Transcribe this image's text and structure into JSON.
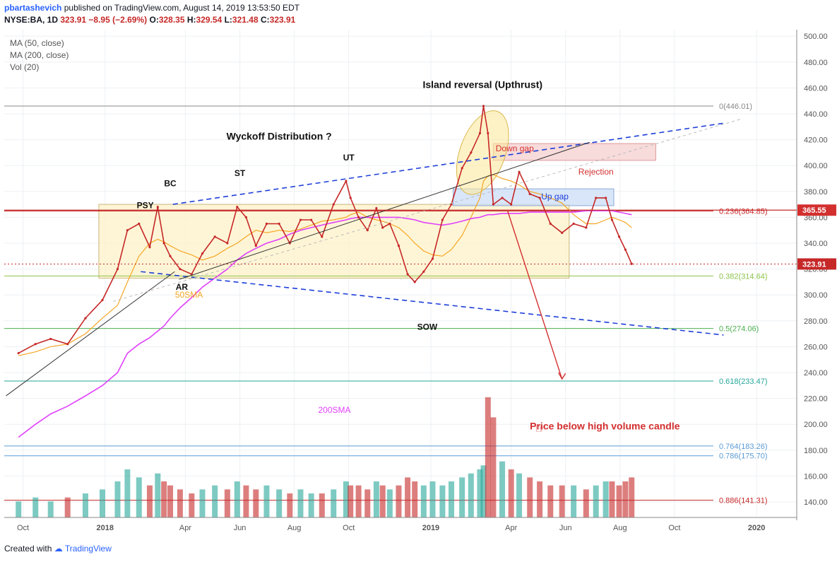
{
  "header": {
    "author": "pbartashevich",
    "published_text": "published on TradingView.com, August 14, 2019 13:53:50 EDT",
    "symbol": "NYSE:BA, 1D",
    "last": "323.91",
    "change": "−8.95 (−2.69%)",
    "o_label": "O:",
    "o": "328.35",
    "h_label": "H:",
    "h": "329.54",
    "l_label": "L:",
    "l": "321.48",
    "c_label": "C:",
    "c": "323.91"
  },
  "indicators": [
    "MA (50, close)",
    "MA (200, close)",
    "Vol (20)"
  ],
  "footer": {
    "created": "Created with",
    "brand": "TradingView"
  },
  "colors": {
    "up": "#26a69a",
    "down": "#c62828",
    "ma50": "#f5a623",
    "ma200": "#e040fb",
    "grid": "#eef0f3",
    "trend": "#1e3fd9",
    "fib": "#8bc34a"
  },
  "chart_data": {
    "type": "line",
    "symbol": "NYSE:BA",
    "interval": "1D",
    "x_ticks": [
      "Oct",
      "2018",
      "Apr",
      "Jun",
      "Aug",
      "Oct",
      "2019",
      "Apr",
      "Jun",
      "Aug",
      "Oct",
      "2020"
    ],
    "y_ticks": [
      "500.00",
      "480.00",
      "460.00",
      "440.00",
      "420.00",
      "400.00",
      "380.00",
      "360.00",
      "340.00",
      "320.00",
      "300.00",
      "280.00",
      "260.00",
      "240.00",
      "220.00",
      "200.00",
      "180.00",
      "160.00",
      "140.00"
    ],
    "ylim": [
      128,
      505
    ],
    "x": [
      "2017-09-26",
      "2017-10-15",
      "2017-11-01",
      "2017-11-20",
      "2017-12-10",
      "2017-12-29",
      "2018-01-15",
      "2018-01-26",
      "2018-02-08",
      "2018-02-20",
      "2018-03-01",
      "2018-03-08",
      "2018-03-15",
      "2018-03-26",
      "2018-04-08",
      "2018-04-20",
      "2018-05-04",
      "2018-05-18",
      "2018-05-29",
      "2018-06-08",
      "2018-06-19",
      "2018-07-01",
      "2018-07-15",
      "2018-07-27",
      "2018-08-08",
      "2018-08-20",
      "2018-09-01",
      "2018-09-14",
      "2018-09-28",
      "2018-10-03",
      "2018-10-12",
      "2018-10-22",
      "2018-11-01",
      "2018-11-08",
      "2018-11-16",
      "2018-11-26",
      "2018-12-06",
      "2018-12-14",
      "2018-12-24",
      "2019-01-03",
      "2019-01-14",
      "2019-01-24",
      "2019-02-05",
      "2019-02-15",
      "2019-02-25",
      "2019-03-01",
      "2019-03-06",
      "2019-03-12",
      "2019-03-22",
      "2019-04-01",
      "2019-04-10",
      "2019-04-22",
      "2019-05-03",
      "2019-05-15",
      "2019-05-28",
      "2019-06-10",
      "2019-06-24",
      "2019-07-05",
      "2019-07-16",
      "2019-07-23",
      "2019-07-31",
      "2019-08-07",
      "2019-08-14"
    ],
    "series": [
      {
        "name": "NYSE:BA",
        "values": [
          255,
          262,
          266,
          262,
          282,
          296,
          320,
          350,
          355,
          337,
          368,
          340,
          330,
          320,
          316,
          332,
          345,
          340,
          368,
          360,
          338,
          355,
          355,
          340,
          358,
          358,
          345,
          370,
          388,
          375,
          360,
          350,
          367,
          352,
          355,
          338,
          316,
          310,
          318,
          328,
          358,
          370,
          398,
          410,
          425,
          446,
          425,
          370,
          375,
          370,
          395,
          378,
          375,
          355,
          348,
          355,
          352,
          375,
          375,
          358,
          345,
          335,
          324
        ]
      },
      {
        "name": "MA (50, close)",
        "values": [
          253,
          256,
          260,
          262,
          270,
          282,
          292,
          310,
          330,
          340,
          343,
          341,
          338,
          334,
          331,
          327,
          330,
          336,
          340,
          345,
          350,
          348,
          350,
          349,
          351,
          354,
          357,
          358,
          360,
          362,
          364,
          360,
          358,
          357,
          355,
          352,
          346,
          340,
          334,
          331,
          330,
          335,
          346,
          360,
          375,
          388,
          392,
          393,
          390,
          388,
          385,
          380,
          378,
          375,
          371,
          362,
          355,
          355,
          358,
          360,
          358,
          356,
          352
        ]
      },
      {
        "name": "MA (200, close)",
        "values": [
          190,
          200,
          208,
          214,
          222,
          230,
          240,
          255,
          262,
          267,
          272,
          276,
          282,
          290,
          298,
          306,
          313,
          320,
          327,
          332,
          336,
          340,
          343,
          347,
          350,
          352,
          354,
          356,
          358,
          359,
          360,
          360,
          360,
          360,
          360,
          360,
          359,
          358,
          356,
          355,
          354,
          355,
          357,
          359,
          360,
          361,
          362,
          362,
          363,
          363,
          363,
          364,
          364,
          364,
          364,
          364,
          365,
          365,
          365,
          365,
          364,
          363,
          362
        ]
      }
    ],
    "current_price": "323.91",
    "resistance_price": "365.55",
    "fib_levels": [
      {
        "ratio": "0",
        "value": "446.01",
        "label": "0(446.01)"
      },
      {
        "ratio": "0.236",
        "value": "364.85",
        "label": "0.236(364.85)"
      },
      {
        "ratio": "0.382",
        "value": "314.64",
        "label": "0.382(314.64)"
      },
      {
        "ratio": "0.5",
        "value": "274.06",
        "label": "0.5(274.06)"
      },
      {
        "ratio": "0.618",
        "value": "233.47",
        "label": "0.618(233.47)"
      },
      {
        "ratio": "0.764",
        "value": "183.26",
        "label": "0.764(183.26)"
      },
      {
        "ratio": "0.786",
        "value": "175.70",
        "label": "0.786(175.70)"
      },
      {
        "ratio": "0.886",
        "value": "141.31",
        "label": "0.886(141.31)"
      }
    ],
    "annotations": [
      {
        "text": "Island reversal (Upthrust)",
        "date": "2019-02-28",
        "price": 460
      },
      {
        "text": "Wyckoff Distribution ?",
        "date": "2018-07-15",
        "price": 420
      },
      {
        "text": "Down gap",
        "date": "2019-04-05",
        "price": 411
      },
      {
        "text": "Rejection",
        "date": "2019-07-05",
        "price": 393
      },
      {
        "text": "Up gap",
        "date": "2019-05-20",
        "price": 374
      },
      {
        "text": "PSY",
        "date": "2018-02-15",
        "price": 367
      },
      {
        "text": "BC",
        "date": "2018-03-15",
        "price": 384
      },
      {
        "text": "ST",
        "date": "2018-06-01",
        "price": 392
      },
      {
        "text": "UT",
        "date": "2018-10-01",
        "price": 404
      },
      {
        "text": "AR",
        "date": "2018-03-28",
        "price": 304
      },
      {
        "text": "SOW",
        "date": "2018-12-28",
        "price": 273
      },
      {
        "text": "50SMA",
        "date": "2018-04-05",
        "price": 298
      },
      {
        "text": "200SMA",
        "date": "2018-09-15",
        "price": 209
      },
      {
        "text": "Price below high volume candle",
        "date": "2019-07-15",
        "price": 196
      }
    ],
    "volume": [
      4,
      5,
      4,
      5,
      6,
      7,
      9,
      12,
      10,
      8,
      11,
      9,
      8,
      7,
      6,
      7,
      8,
      7,
      9,
      8,
      7,
      8,
      7,
      6,
      7,
      6,
      6,
      7,
      9,
      8,
      8,
      7,
      9,
      8,
      7,
      8,
      10,
      9,
      8,
      9,
      8,
      9,
      10,
      11,
      12,
      13,
      30,
      25,
      14,
      12,
      11,
      10,
      9,
      8,
      8,
      8,
      7,
      8,
      9,
      9,
      8,
      9,
      10
    ]
  }
}
